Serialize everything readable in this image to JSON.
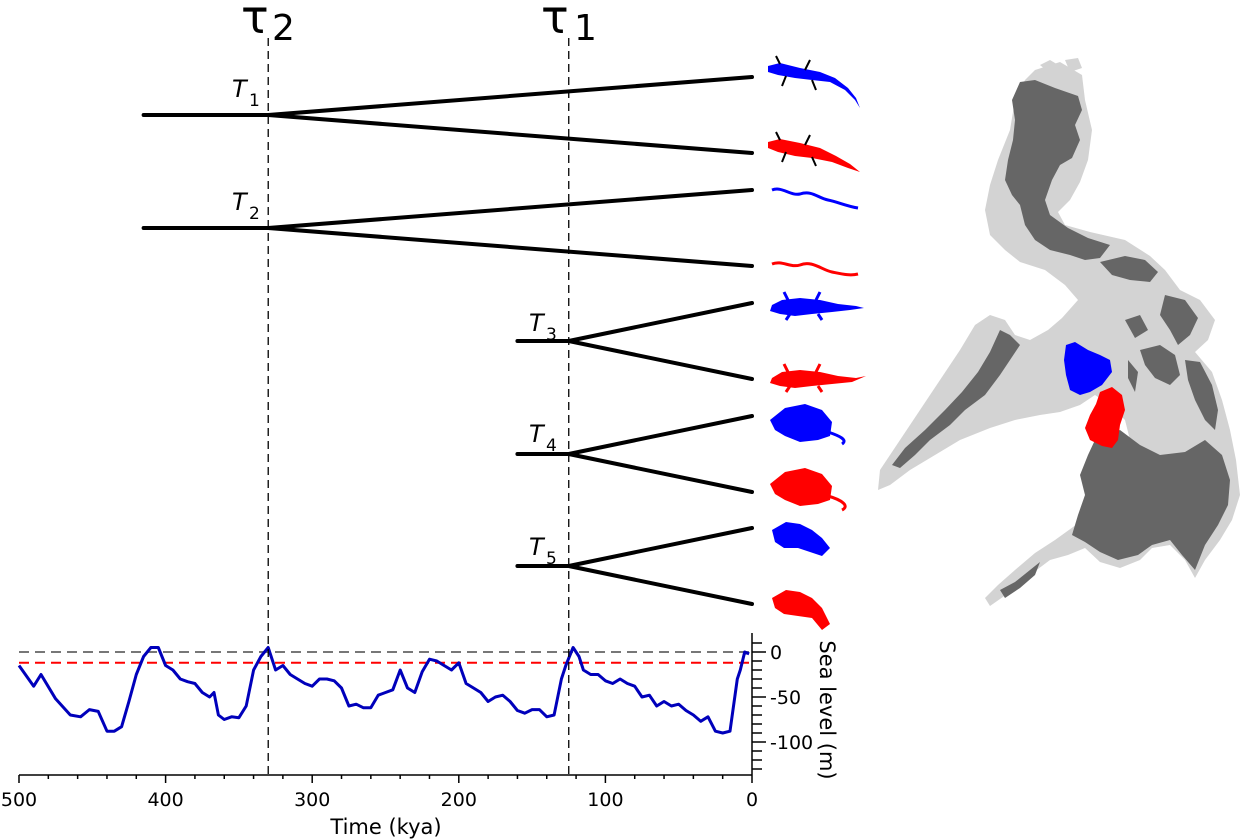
{
  "figure": {
    "tau_labels": [
      "τ",
      "2",
      "τ",
      "1"
    ],
    "split_labels": [
      {
        "main": "T",
        "sub": "1"
      },
      {
        "main": "T",
        "sub": "2"
      },
      {
        "main": "T",
        "sub": "3"
      },
      {
        "main": "T",
        "sub": "4"
      },
      {
        "main": "T",
        "sub": "5"
      }
    ],
    "split_times_kya": [
      330,
      330,
      125,
      125,
      125
    ],
    "tau_times_kya": [
      330,
      125
    ],
    "pair_icons": [
      "lizard",
      "snake",
      "gecko",
      "rat",
      "frog"
    ],
    "colors": {
      "island_a": "#0000ff",
      "island_b": "#ff0000",
      "sea_level_line": "#0000bb",
      "land": "#666666",
      "shelf": "#d3d3d3",
      "present_level": "#777777",
      "threshold_level": "#ff0000"
    }
  },
  "chart_data": {
    "type": "line",
    "xlabel": "Time (kya)",
    "ylabel": "Sea level (m)",
    "xlim": [
      500,
      0
    ],
    "ylim": [
      -130,
      15
    ],
    "x_ticks": [
      "500",
      "400",
      "300",
      "200",
      "100",
      "0"
    ],
    "y_ticks": [
      "0",
      "-50",
      "-100"
    ],
    "reference_lines": [
      {
        "name": "present",
        "y": 0,
        "color": "#777777",
        "style": "dashed"
      },
      {
        "name": "threshold",
        "y": -12,
        "color": "#ff0000",
        "style": "dashed"
      }
    ],
    "series": [
      {
        "x": [
          500,
          490,
          485,
          475,
          465,
          458,
          452,
          446,
          440,
          435,
          430,
          425,
          420,
          415,
          410,
          405,
          400,
          395,
          390,
          385,
          380,
          375,
          370,
          367,
          364,
          360,
          355,
          350,
          345,
          340,
          335,
          330,
          325,
          320,
          315,
          310,
          305,
          300,
          295,
          290,
          285,
          280,
          275,
          270,
          265,
          260,
          255,
          250,
          245,
          240,
          235,
          230,
          225,
          220,
          215,
          210,
          205,
          200,
          195,
          190,
          185,
          180,
          175,
          170,
          165,
          160,
          155,
          150,
          145,
          140,
          135,
          130,
          127,
          122,
          118,
          115,
          110,
          105,
          100,
          95,
          90,
          85,
          80,
          75,
          70,
          65,
          60,
          55,
          50,
          45,
          40,
          35,
          30,
          25,
          20,
          15,
          10,
          8,
          5,
          2
        ],
        "y": [
          -15,
          -38,
          -25,
          -52,
          -70,
          -72,
          -64,
          -66,
          -88,
          -88,
          -83,
          -55,
          -25,
          -5,
          5,
          5,
          -15,
          -20,
          -30,
          -33,
          -35,
          -45,
          -50,
          -45,
          -70,
          -75,
          -72,
          -73,
          -60,
          -20,
          -5,
          5,
          -20,
          -15,
          -25,
          -30,
          -35,
          -38,
          -30,
          -30,
          -32,
          -40,
          -60,
          -58,
          -62,
          -62,
          -48,
          -45,
          -42,
          -20,
          -40,
          -45,
          -22,
          -8,
          -10,
          -15,
          -20,
          -12,
          -35,
          -40,
          -45,
          -55,
          -50,
          -48,
          -55,
          -65,
          -68,
          -64,
          -64,
          -72,
          -70,
          -30,
          -15,
          5,
          -5,
          -20,
          -25,
          -25,
          -32,
          -35,
          -30,
          -35,
          -38,
          -50,
          -48,
          -60,
          -55,
          -60,
          -58,
          -65,
          -70,
          -77,
          -72,
          -88,
          -90,
          -88,
          -30,
          -20,
          0,
          -2
        ]
      }
    ]
  }
}
